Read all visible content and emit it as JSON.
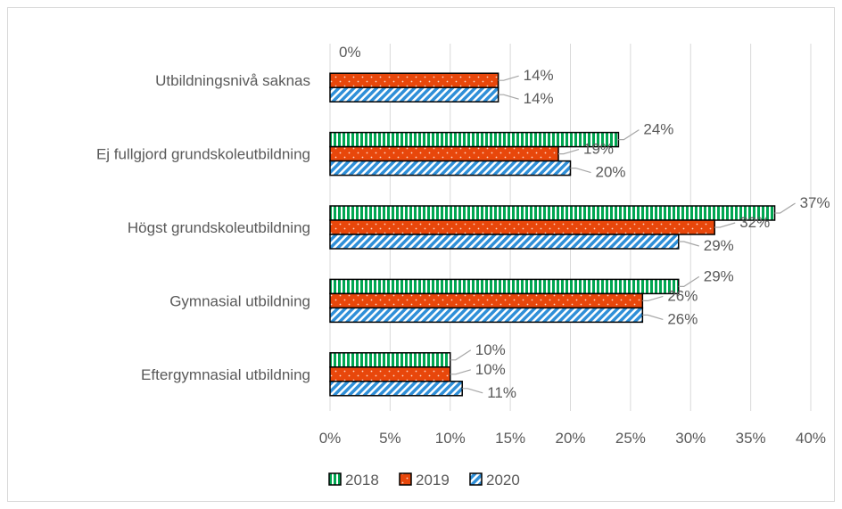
{
  "chart_data": {
    "type": "bar",
    "orientation": "horizontal",
    "categories": [
      "Utbildningsnivå saknas",
      "Ej fullgjord grundskoleutbildning",
      "Högst grundskoleutbildning",
      "Gymnasial utbildning",
      "Eftergymnasial utbildning"
    ],
    "series": [
      {
        "name": "2018",
        "values": [
          0,
          24,
          37,
          29,
          10
        ],
        "labels": [
          "0%",
          "24%",
          "37%",
          "29%",
          "10%"
        ],
        "color": "#00a651",
        "pattern": "vertical-stripes"
      },
      {
        "name": "2019",
        "values": [
          14,
          19,
          32,
          26,
          10
        ],
        "labels": [
          "14%",
          "19%",
          "32%",
          "26%",
          "10%"
        ],
        "color": "#e8470b",
        "pattern": "dots"
      },
      {
        "name": "2020",
        "values": [
          14,
          20,
          29,
          26,
          11
        ],
        "labels": [
          "14%",
          "20%",
          "29%",
          "26%",
          "11%"
        ],
        "color": "#2f8fd8",
        "pattern": "diagonal-stripes"
      }
    ],
    "x_ticks": [
      "0%",
      "5%",
      "10%",
      "15%",
      "20%",
      "25%",
      "30%",
      "35%",
      "40%"
    ],
    "xlim": [
      0,
      40
    ],
    "grid": "vertical",
    "legend_position": "bottom"
  }
}
